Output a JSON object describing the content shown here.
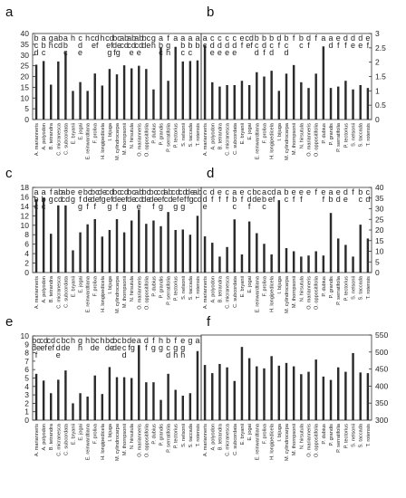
{
  "chart_data": [
    {
      "panel_label": "a",
      "type": "bar",
      "categories": [
        "A. marianneris",
        "A. polyodon",
        "B. tetrandra",
        "C. micranesca",
        "C. subcordata",
        "E. bryanii",
        "E. jogai",
        "E. reinwardtiana",
        "F. prolixa",
        "H. longipedicela",
        "I. bijuga",
        "M. cylindrocarpa",
        "M. thornpsonii",
        "N. hirsutula",
        "O. marianneris",
        "O. oppositifolia",
        "P. dubius",
        "P. grandis",
        "P. serratifolia",
        "P. tectorius",
        "S. nelsonii",
        "S. taccada",
        "T. rotensis"
      ],
      "values": [
        25.5,
        27.2,
        16.2,
        27.0,
        31.5,
        13.3,
        17.4,
        13.3,
        21.4,
        15.8,
        23.5,
        21.0,
        25.2,
        23.8,
        25.0,
        23.5,
        14.0,
        33.5,
        18.0,
        33.8,
        27.0,
        27.2,
        27.5
      ],
      "sig_letters": [
        "b\nc\nd",
        "a\nb\nc",
        "g\nh",
        "a\nb\nc\nd",
        "a\nb\nc",
        "h",
        "c\nd\ne",
        "h",
        "c\nd\ne\nf",
        "h",
        "c\nd\ne\nf\ng",
        "b\nc\nd\ne\nf\ng",
        "a\nb\nc\nd",
        "a\nb\nc\nd\ne",
        "a\nb\nc\nd\ne",
        "b\nc\nd\ne",
        "g\nh",
        "a\nb\nc",
        "f\ng\nh",
        "a",
        "a\nb\nc",
        "a\nb\nc",
        "a\nb"
      ],
      "ylim": [
        0,
        40
      ],
      "yticks": [
        0,
        5,
        10,
        15,
        20,
        25,
        30,
        35,
        40
      ],
      "y_axis": "left"
    },
    {
      "panel_label": "b",
      "type": "bar",
      "categories": [
        "A. marianneris",
        "A. polyodon",
        "B. tetrandra",
        "C. micranesca",
        "C. subcordata",
        "E. bryanii",
        "E. jogai",
        "E. reinwardtiana",
        "F. prolixa",
        "H. longipedicela",
        "I. bijuga",
        "M. cylindrocarpa",
        "M. thornpsonii",
        "N. hirsutula",
        "O. marianneris",
        "O. oppositifolia",
        "P. dubius",
        "P. grandis",
        "P. serratifolia",
        "P. tectorius",
        "S. nelsonii",
        "S. taccada",
        "T. rotensis"
      ],
      "values": [
        2.6,
        1.3,
        1.15,
        1.2,
        1.2,
        1.35,
        1.2,
        1.65,
        1.5,
        1.7,
        1.0,
        1.6,
        1.9,
        1.3,
        1.1,
        1.6,
        2.55,
        1.1,
        1.15,
        1.35,
        1.05,
        1.2,
        1.1
      ],
      "sig_letters": [
        "a\nc",
        "c\nd\ne",
        "c\nd\ne",
        "c\nd\ne",
        "c\nd\ne",
        "e\nf",
        "c\nd\ne\nf",
        "b\nc\nd",
        "b\nd\nf",
        "b\nc\nd",
        "d\nf",
        "b\nc\nd",
        "f",
        "b\nc",
        "d\nf",
        "f",
        "a",
        "a\nd",
        "e\nf",
        "d\nf",
        "d\ne",
        "d\ne",
        "e\nf"
      ],
      "ylim": [
        0,
        3
      ],
      "yticks": [
        0,
        0.5,
        1,
        1.5,
        2,
        2.5,
        3
      ],
      "y_axis": "right"
    },
    {
      "panel_label": "c",
      "type": "bar",
      "categories": [
        "A. marianneris",
        "A. polyodon",
        "B. tetrandra",
        "C. micranesca",
        "C. subcordata",
        "E. bryanii",
        "E. jogai",
        "E. reinwardtiana",
        "F. prolixa",
        "H. longipedicela",
        "I. bijuga",
        "M. cylindrocarpa",
        "M. thornpsonii",
        "N. hirsutula",
        "O. marianneris",
        "O. oppositifolia",
        "P. dubius",
        "P. grandis",
        "P. serratifolia",
        "P. tectorius",
        "S. nelsonii",
        "S. taccada",
        "T. rotensis"
      ],
      "values": [
        15.5,
        15.8,
        8.2,
        14.2,
        14.2,
        4.7,
        8.5,
        10.2,
        11.3,
        7.6,
        9.0,
        11.3,
        8.5,
        11.0,
        13.3,
        10.3,
        11.0,
        9.8,
        12.8,
        9.0,
        9.1,
        8.0,
        12.0
      ],
      "sig_letters": [
        "a\nb\nc",
        "a\nb\nc",
        "f\ng",
        "a\nb\nc\nd",
        "a\nb\nc\nd",
        "e\ng",
        "e\nf\ng",
        "b\nc\nd\ne\nf",
        "b\nc\nd\ne\nf",
        "d\ne\nf\ng",
        "c\nd\ne\nf\ng",
        "b\nc\nd\ne\nf",
        "c\nd\ne\nf\ng",
        "b\nc\nd\ne",
        "a\nb\nc\nd\ne",
        "b\nc\nd\ne",
        "b\nc\nd\ne\nf",
        "c\nd\ne\nf\ng",
        "a\nb\nc\nd",
        "c\nd\ne\nf\ng",
        "c\nd\ne\nf\ng",
        "d\ne\nf\ng",
        "a\nb\nc\nd"
      ],
      "ylim": [
        0,
        18
      ],
      "yticks": [
        0,
        2,
        4,
        6,
        8,
        10,
        12,
        14,
        16,
        18
      ],
      "y_axis": "left"
    },
    {
      "panel_label": "d",
      "type": "bar",
      "categories": [
        "A. marianneris",
        "A. polyodon",
        "B. tetrandra",
        "C. micranesca",
        "C. subcordata",
        "E. bryanii",
        "E. jogai",
        "E. reinwardtiana",
        "F. prolixa",
        "H. longipedicela",
        "I. bijuga",
        "M. cylindrocarpa",
        "M. thornpsonii",
        "N. hirsutula",
        "O. marianneris",
        "O. oppositifolia",
        "P. dubius",
        "P. grandis",
        "P. serratifolia",
        "P. tectorius",
        "S. nelsonii",
        "S. taccada",
        "T. rotensis"
      ],
      "values": [
        17.0,
        14.0,
        7.5,
        12.0,
        25.0,
        8.5,
        24.0,
        18.5,
        13.5,
        8.5,
        34.0,
        11.5,
        10.0,
        7.5,
        8.0,
        10.0,
        8.0,
        28.0,
        16.0,
        13.0,
        7.5,
        22.5,
        16.0
      ],
      "sig_letters": [
        "c\nd\ne",
        "d\nf",
        "e\nf",
        "c\nf",
        "a\nb\nc",
        "e\nf",
        "c\nd\nf",
        "b\nc\nd\ne",
        "a\nb\nc",
        "c\nd\ne\nf",
        "a",
        "b\nc",
        "e\nf",
        "e\nf",
        "e",
        "f",
        "e\nf",
        "a\nb",
        "e\nd",
        "d\ne",
        "f",
        "b\nc",
        "c\nd"
      ],
      "ylim": [
        0,
        40
      ],
      "yticks": [
        0,
        5,
        10,
        15,
        20,
        25,
        30,
        35,
        40
      ],
      "y_axis": "right"
    },
    {
      "panel_label": "e",
      "type": "bar",
      "categories": [
        "A. marianneris",
        "A. polyodon",
        "B. tetrandra",
        "C. micranesca",
        "C. subcordata",
        "E. bryanii",
        "E. jogai",
        "E. reinwardtiana",
        "F. prolixa",
        "H. longipedicela",
        "I. bijuga",
        "M. cylindrocarpa",
        "M. thornpsonii",
        "N. hirsutula",
        "O. marianneris",
        "O. oppositifolia",
        "P. dubius",
        "P. grandis",
        "P. serratifolia",
        "P. tectorius",
        "S. nelsonii",
        "S. taccada",
        "T. rotensis"
      ],
      "values": [
        5.5,
        4.7,
        3.2,
        4.8,
        5.9,
        2.0,
        3.2,
        2.8,
        5.3,
        3.1,
        6.3,
        5.1,
        5.1,
        5.0,
        8.9,
        4.5,
        4.5,
        2.4,
        5.5,
        3.6,
        2.9,
        3.2,
        8.2
      ],
      "sig_letters": [
        "b\nc\nd\ne\nf",
        "c\nd\ne\nf",
        "c\nd\ne\nf",
        "c\nd\ne",
        "b\nc\nd\ne",
        "h",
        "g\nh",
        "h",
        "b\nc\nd\ne",
        "h",
        "b\nc\nd\ne",
        "b\nc\nd\ne",
        "b\nc\nd",
        "d\ne\nf\ng",
        "a",
        "d\nf",
        "f\ng",
        "h\ng",
        "b\nc\nd",
        "f\ng\nh",
        "e\ng\nh",
        "g",
        "a"
      ],
      "ylim": [
        0,
        10
      ],
      "yticks": [
        0,
        1,
        2,
        3,
        4,
        5,
        6,
        7,
        8,
        9,
        10
      ],
      "y_axis": "left"
    },
    {
      "panel_label": "f",
      "type": "bar",
      "categories": [
        "A. marianneris",
        "A. polyodon",
        "B. tetrandra",
        "C. micranesca",
        "C. subcordata",
        "E. bryanii",
        "E. jogai",
        "E. reinwardtiana",
        "F. prolixa",
        "H. longipedicela",
        "I. bijuga",
        "M. cylindrocarpa",
        "M. thornpsonii",
        "N. hirsutula",
        "O. marianneris",
        "O. oppositifolia",
        "P. dubius",
        "P. grandis",
        "P. serratifolia",
        "P. tectorius",
        "S. nelsonii",
        "S. taccada",
        "T. rotensis"
      ],
      "values": [
        462,
        438,
        465,
        455,
        415,
        515,
        482,
        458,
        452,
        488,
        460,
        468,
        458,
        435,
        442,
        478,
        428,
        418,
        455,
        442,
        497,
        440,
        438
      ],
      "sig_letters": [],
      "ylim": [
        300,
        550
      ],
      "yticks": [
        300,
        350,
        400,
        450,
        500,
        550
      ],
      "y_axis": "right"
    }
  ]
}
